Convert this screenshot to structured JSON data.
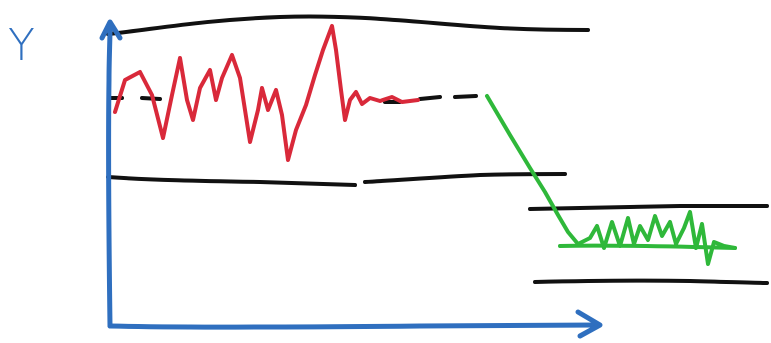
{
  "diagram": {
    "axis_label_y": "Y",
    "colors": {
      "axis": "#2f6fbf",
      "limit_lines": "#111111",
      "before_signal": "#d9293a",
      "after_signal": "#2fb83a"
    }
  }
}
